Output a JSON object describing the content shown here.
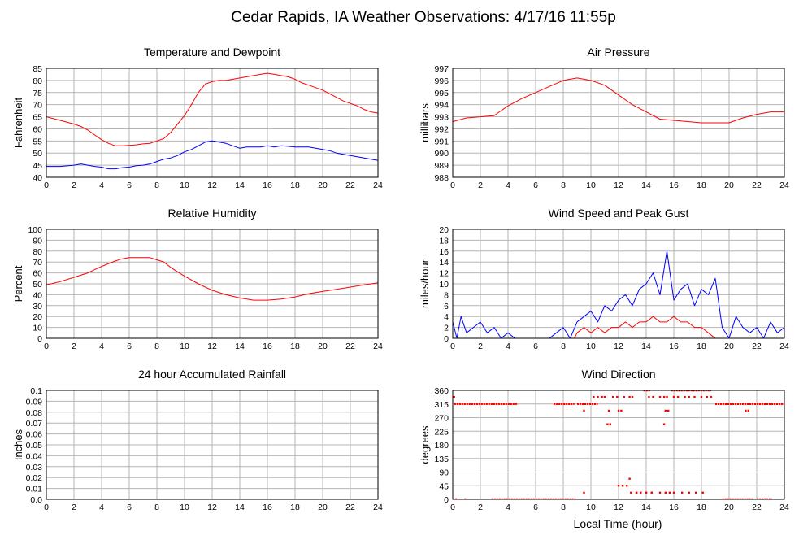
{
  "title": "Cedar Rapids, IA Weather Observations: 4/17/16 11:55p",
  "xlabel": "Local Time (hour)",
  "colors": {
    "red": "#ff0000",
    "blue": "#0000ff",
    "grid": "#b4b4b4"
  },
  "chart_data": [
    {
      "type": "line",
      "title": "Temperature and Dewpoint",
      "ylabel": "Fahrenheit",
      "xlim": [
        0,
        24
      ],
      "ylim": [
        40,
        85
      ],
      "xticks": [
        0,
        2,
        4,
        6,
        8,
        10,
        12,
        14,
        16,
        18,
        20,
        22,
        24
      ],
      "yticks": [
        40,
        45,
        50,
        55,
        60,
        65,
        70,
        75,
        80,
        85
      ],
      "series": [
        {
          "color": "#ff0000",
          "x": [
            0,
            1,
            2,
            2.5,
            3,
            3.5,
            4,
            4.5,
            5,
            5.5,
            6,
            6.5,
            7,
            7.5,
            8,
            8.5,
            9,
            9.5,
            10,
            10.5,
            11,
            11.5,
            12,
            12.5,
            13,
            13.5,
            14,
            14.5,
            15,
            15.5,
            16,
            16.5,
            17,
            17.5,
            18,
            18.5,
            19,
            19.5,
            20,
            20.5,
            21,
            21.5,
            22,
            22.5,
            23,
            23.5,
            24
          ],
          "y": [
            65,
            63.5,
            62,
            61,
            59.5,
            57.5,
            55.5,
            54,
            53,
            53,
            53.2,
            53.4,
            53.8,
            54,
            55,
            56,
            58.5,
            62,
            65.5,
            70,
            75,
            78.5,
            79.5,
            80,
            80,
            80.5,
            81,
            81.5,
            82,
            82.5,
            83,
            82.5,
            82,
            81.5,
            80.5,
            79,
            78,
            77,
            76,
            74.5,
            73,
            71.5,
            70.5,
            69.5,
            68,
            67,
            66.5
          ]
        },
        {
          "color": "#0000ff",
          "x": [
            0,
            1,
            2,
            2.5,
            3,
            3.5,
            4,
            4.5,
            5,
            5.5,
            6,
            6.5,
            7,
            7.5,
            8,
            8.5,
            9,
            9.5,
            10,
            10.5,
            11,
            11.5,
            12,
            12.5,
            13,
            13.5,
            14,
            14.5,
            15,
            15.5,
            16,
            16.5,
            17,
            17.5,
            18,
            18.5,
            19,
            19.5,
            20,
            20.5,
            21,
            21.5,
            22,
            22.5,
            23,
            23.5,
            24
          ],
          "y": [
            44.5,
            44.5,
            45,
            45.5,
            45,
            44.5,
            44.2,
            43.5,
            43.5,
            44,
            44.2,
            44.8,
            45,
            45.5,
            46.5,
            47.5,
            48,
            49,
            50.5,
            51.5,
            53,
            54.5,
            55,
            54.5,
            54,
            53,
            52,
            52.5,
            52.5,
            52.5,
            53,
            52.5,
            53,
            52.8,
            52.5,
            52.5,
            52.5,
            52,
            51.5,
            51,
            50,
            49.5,
            49,
            48.5,
            48,
            47.5,
            47
          ]
        }
      ]
    },
    {
      "type": "line",
      "title": "Air Pressure",
      "ylabel": "millibars",
      "xlim": [
        0,
        24
      ],
      "ylim": [
        988,
        997
      ],
      "xticks": [
        0,
        2,
        4,
        6,
        8,
        10,
        12,
        14,
        16,
        18,
        20,
        22,
        24
      ],
      "yticks": [
        988,
        989,
        990,
        991,
        992,
        993,
        994,
        995,
        996,
        997
      ],
      "series": [
        {
          "color": "#ff0000",
          "x": [
            0,
            1,
            2,
            3,
            3.5,
            4,
            5,
            6,
            7,
            8,
            9,
            10,
            11,
            12,
            13,
            14,
            15,
            16,
            17,
            18,
            19,
            20,
            20.5,
            21,
            22,
            23,
            24
          ],
          "y": [
            992.6,
            992.9,
            993.0,
            993.1,
            993.5,
            993.9,
            994.5,
            995.0,
            995.5,
            996.0,
            996.2,
            996.0,
            995.6,
            994.8,
            994.0,
            993.4,
            992.8,
            992.7,
            992.6,
            992.5,
            992.5,
            992.5,
            992.7,
            992.9,
            993.2,
            993.4,
            993.4
          ]
        }
      ]
    },
    {
      "type": "line",
      "title": "Relative Humidity",
      "ylabel": "Percent",
      "xlim": [
        0,
        24
      ],
      "ylim": [
        0,
        100
      ],
      "xticks": [
        0,
        2,
        4,
        6,
        8,
        10,
        12,
        14,
        16,
        18,
        20,
        22,
        24
      ],
      "yticks": [
        0,
        10,
        20,
        30,
        40,
        50,
        60,
        70,
        80,
        90,
        100
      ],
      "series": [
        {
          "color": "#ff0000",
          "x": [
            0,
            1,
            2,
            3,
            4,
            5,
            5.5,
            6,
            6.5,
            7,
            7.5,
            8,
            8.5,
            9,
            9.5,
            10,
            11,
            12,
            13,
            14,
            15,
            16,
            17,
            18,
            19,
            20,
            21,
            22,
            23,
            24
          ],
          "y": [
            49,
            52,
            56,
            60,
            66,
            71,
            73,
            74,
            74,
            74,
            74,
            72,
            70,
            65,
            61,
            57,
            50,
            44,
            40,
            37,
            35,
            35,
            36,
            38,
            41,
            43,
            45,
            47,
            49,
            51
          ]
        }
      ]
    },
    {
      "type": "line",
      "title": "Wind Speed and Peak Gust",
      "ylabel": "miles/hour",
      "xlim": [
        0,
        24
      ],
      "ylim": [
        0,
        20
      ],
      "xticks": [
        0,
        2,
        4,
        6,
        8,
        10,
        12,
        14,
        16,
        18,
        20,
        22,
        24
      ],
      "yticks": [
        0,
        2,
        4,
        6,
        8,
        10,
        12,
        14,
        16,
        18,
        20
      ],
      "series": [
        {
          "color": "#0000ff",
          "x": [
            0,
            0.3,
            0.6,
            1,
            1.5,
            2,
            2.5,
            3,
            3.5,
            4,
            4.5,
            5,
            5.5,
            6,
            6.5,
            7,
            7.5,
            8,
            8.5,
            9,
            9.5,
            10,
            10.5,
            11,
            11.5,
            12,
            12.5,
            13,
            13.5,
            14,
            14.5,
            15,
            15.5,
            16,
            16.5,
            17,
            17.5,
            18,
            18.5,
            19,
            19.5,
            20,
            20.5,
            21,
            21.5,
            22,
            22.5,
            23,
            23.5,
            24
          ],
          "y": [
            3,
            0,
            4,
            1,
            2,
            3,
            1,
            2,
            0,
            1,
            0,
            0,
            0,
            0,
            0,
            0,
            1,
            2,
            0,
            3,
            4,
            5,
            3,
            6,
            5,
            7,
            8,
            6,
            9,
            10,
            12,
            8,
            16,
            7,
            9,
            10,
            6,
            9,
            8,
            11,
            2,
            0,
            4,
            2,
            1,
            2,
            0,
            3,
            1,
            2
          ]
        },
        {
          "color": "#ff0000",
          "x": [
            8.8,
            9,
            9.5,
            10,
            10.5,
            11,
            11.5,
            12,
            12.5,
            13,
            13.5,
            14,
            14.5,
            15,
            15.5,
            16,
            16.5,
            17,
            17.5,
            18,
            18.5,
            19
          ],
          "y": [
            0,
            1,
            2,
            1,
            2,
            1,
            2,
            2,
            3,
            2,
            3,
            3,
            4,
            3,
            3,
            4,
            3,
            3,
            2,
            2,
            1,
            0
          ]
        }
      ]
    },
    {
      "type": "line",
      "title": "24 hour Accumulated Rainfall",
      "ylabel": "Inches",
      "xlim": [
        0,
        24
      ],
      "ylim": [
        0,
        0.1
      ],
      "xticks": [
        0,
        2,
        4,
        6,
        8,
        10,
        12,
        14,
        16,
        18,
        20,
        22,
        24
      ],
      "yticks": [
        0,
        0.01,
        0.02,
        0.03,
        0.04,
        0.05,
        0.06,
        0.07,
        0.08,
        0.09,
        0.1
      ],
      "ytick_labels": [
        "0.0",
        "0.01",
        "0.02",
        "0.03",
        "0.04",
        "0.05",
        "0.06",
        "0.07",
        "0.08",
        "0.09",
        "0.1"
      ],
      "series": [
        {
          "color": "#ff0000",
          "x": [
            0,
            24
          ],
          "y": [
            0,
            0
          ]
        }
      ]
    },
    {
      "type": "scatter",
      "title": "Wind Direction",
      "ylabel": "degrees",
      "xlim": [
        0,
        24
      ],
      "ylim": [
        0,
        360
      ],
      "xticks": [
        0,
        2,
        4,
        6,
        8,
        10,
        12,
        14,
        16,
        18,
        20,
        22,
        24
      ],
      "yticks": [
        0,
        45,
        90,
        135,
        180,
        225,
        270,
        315,
        360
      ],
      "series": [
        {
          "color": "#ff0000",
          "segments": [
            {
              "y": 315,
              "from": 0.1,
              "to": 4.7
            },
            {
              "y": 315,
              "from": 7.3,
              "to": 8.8
            },
            {
              "y": 315,
              "from": 9.0,
              "to": 10.5
            },
            {
              "y": 315,
              "from": 19.0,
              "to": 24.0
            },
            {
              "y": 0,
              "from": 0.0,
              "to": 0.4
            },
            {
              "y": 0,
              "from": 2.8,
              "to": 8.9
            },
            {
              "y": 0,
              "from": 19.5,
              "to": 21.7
            },
            {
              "y": 0,
              "from": 22.0,
              "to": 23.1
            },
            {
              "y": 360,
              "from": 13.8,
              "to": 14.3
            },
            {
              "y": 360,
              "from": 15.8,
              "to": 18.7
            }
          ],
          "x": [
            0.1,
            0.9,
            9.5,
            10.2,
            10.8,
            11.0,
            11.2,
            11.4,
            11.6,
            12.0,
            12.2,
            12.4,
            12.8,
            13.0,
            13.3,
            13.6,
            14.0,
            14.4,
            15.0,
            15.3,
            15.5,
            15.7,
            16.0,
            16.3,
            16.8,
            17.1,
            17.5,
            18.0,
            18.4,
            18.7,
            21.2,
            21.4,
            9.5,
            12.0,
            12.3,
            12.6,
            12.9,
            13.3,
            13.6,
            14.0,
            14.4,
            15.0,
            15.4,
            16.0,
            16.6,
            17.1,
            17.6,
            18.1,
            10.5,
            11.3,
            12.8,
            15.3,
            15.4,
            15.6,
            16.4,
            17.4,
            14.2,
            14.5,
            11.9,
            17.0,
            24.0
          ],
          "y": [
            338,
            0,
            22,
            338,
            338,
            338,
            248,
            248,
            338,
            293,
            293,
            338,
            338,
            338,
            22,
            22,
            22,
            22,
            338,
            338,
            338,
            22,
            338,
            338,
            338,
            338,
            338,
            338,
            338,
            338,
            293,
            293,
            293,
            45,
            45,
            45,
            22,
            22,
            22,
            22,
            22,
            22,
            22,
            22,
            22,
            22,
            22,
            22,
            338,
            293,
            68,
            248,
            293,
            293,
            360,
            360,
            338,
            338,
            338,
            360,
            0
          ]
        }
      ]
    }
  ]
}
